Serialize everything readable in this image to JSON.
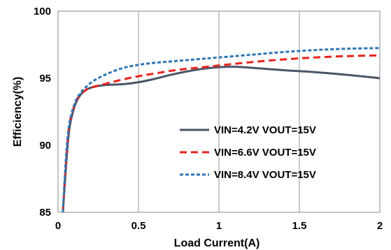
{
  "chart_data": {
    "type": "line",
    "xlabel": "Load Current(A)",
    "ylabel": "Efficiency(%)",
    "xlim": [
      0,
      2
    ],
    "ylim": [
      85,
      100
    ],
    "x_ticks": [
      0,
      0.5,
      1,
      1.5,
      2
    ],
    "x_tick_labels": [
      "0",
      "0.5",
      "1",
      "1.5",
      "2"
    ],
    "y_ticks": [
      85,
      90,
      95,
      100
    ],
    "y_tick_labels": [
      "85",
      "90",
      "95",
      "100"
    ],
    "grid": "vertical",
    "legend_position": "lower-right",
    "series": [
      {
        "name": "VIN=4.2V VOUT=15V",
        "color": "#4a5568",
        "dash": "solid",
        "x": [
          0.03,
          0.05,
          0.07,
          0.1,
          0.13,
          0.17,
          0.22,
          0.3,
          0.4,
          0.5,
          0.6,
          0.7,
          0.8,
          0.9,
          1.0,
          1.1,
          1.2,
          1.4,
          1.6,
          1.8,
          2.0
        ],
        "y": [
          85.0,
          88.5,
          91.2,
          92.8,
          93.6,
          94.1,
          94.35,
          94.5,
          94.55,
          94.7,
          94.95,
          95.25,
          95.5,
          95.7,
          95.82,
          95.85,
          95.78,
          95.6,
          95.45,
          95.25,
          95.0
        ]
      },
      {
        "name": "VIN=6.6V VOUT=15V",
        "color": "#e8231c",
        "dash": "dash",
        "x": [
          0.03,
          0.05,
          0.07,
          0.1,
          0.13,
          0.17,
          0.22,
          0.3,
          0.4,
          0.5,
          0.6,
          0.7,
          0.8,
          0.9,
          1.0,
          1.2,
          1.4,
          1.6,
          1.8,
          2.0
        ],
        "y": [
          85.0,
          88.8,
          91.5,
          92.9,
          93.65,
          94.1,
          94.35,
          94.6,
          94.9,
          95.15,
          95.35,
          95.55,
          95.7,
          95.82,
          95.95,
          96.2,
          96.4,
          96.55,
          96.65,
          96.7
        ]
      },
      {
        "name": "VIN=8.4V VOUT=15V",
        "color": "#2e75b6",
        "dash": "dot",
        "x": [
          0.03,
          0.05,
          0.07,
          0.1,
          0.13,
          0.17,
          0.22,
          0.3,
          0.4,
          0.5,
          0.6,
          0.7,
          0.8,
          0.9,
          1.0,
          1.2,
          1.4,
          1.6,
          1.8,
          2.0
        ],
        "y": [
          85.0,
          89.2,
          91.6,
          93.0,
          93.75,
          94.3,
          94.8,
          95.3,
          95.75,
          96.0,
          96.15,
          96.25,
          96.35,
          96.45,
          96.55,
          96.75,
          96.95,
          97.1,
          97.2,
          97.25
        ]
      }
    ]
  }
}
